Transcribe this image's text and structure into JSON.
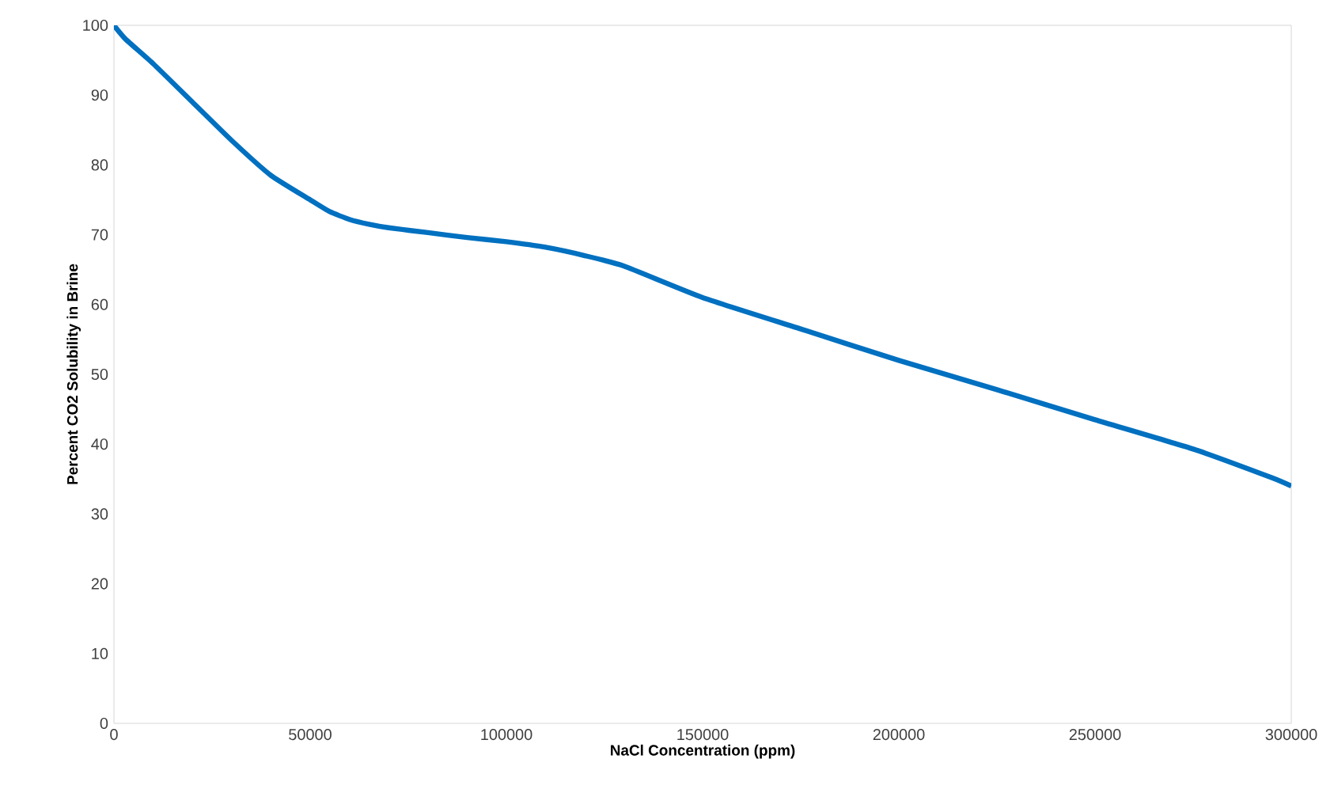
{
  "chart_data": {
    "type": "line",
    "xlabel": "NaCl Concentration (ppm)",
    "ylabel": "Percent CO2  Solubility in Brine",
    "x": [
      0,
      3000,
      10000,
      20000,
      30000,
      40000,
      50000,
      55000,
      60000,
      65000,
      70000,
      80000,
      90000,
      100000,
      110000,
      120000,
      130000,
      150000,
      175000,
      200000,
      225000,
      250000,
      275000,
      295000,
      300000
    ],
    "series": [
      {
        "color": "#0070c0",
        "values": [
          100,
          98,
          94.5,
          89,
          83.5,
          78.5,
          75,
          73.3,
          72.2,
          71.5,
          71,
          70.3,
          69.6,
          69,
          68.2,
          67,
          65.5,
          61,
          56.5,
          52,
          47.8,
          43.5,
          39.3,
          35.2,
          34
        ]
      }
    ],
    "xlim": [
      0,
      300000
    ],
    "ylim": [
      0,
      100
    ],
    "xticks": [
      0,
      50000,
      100000,
      150000,
      200000,
      250000,
      300000
    ],
    "yticks": [
      0,
      10,
      20,
      30,
      40,
      50,
      60,
      70,
      80,
      90,
      100
    ],
    "marker": "none",
    "line_style": "solid"
  }
}
